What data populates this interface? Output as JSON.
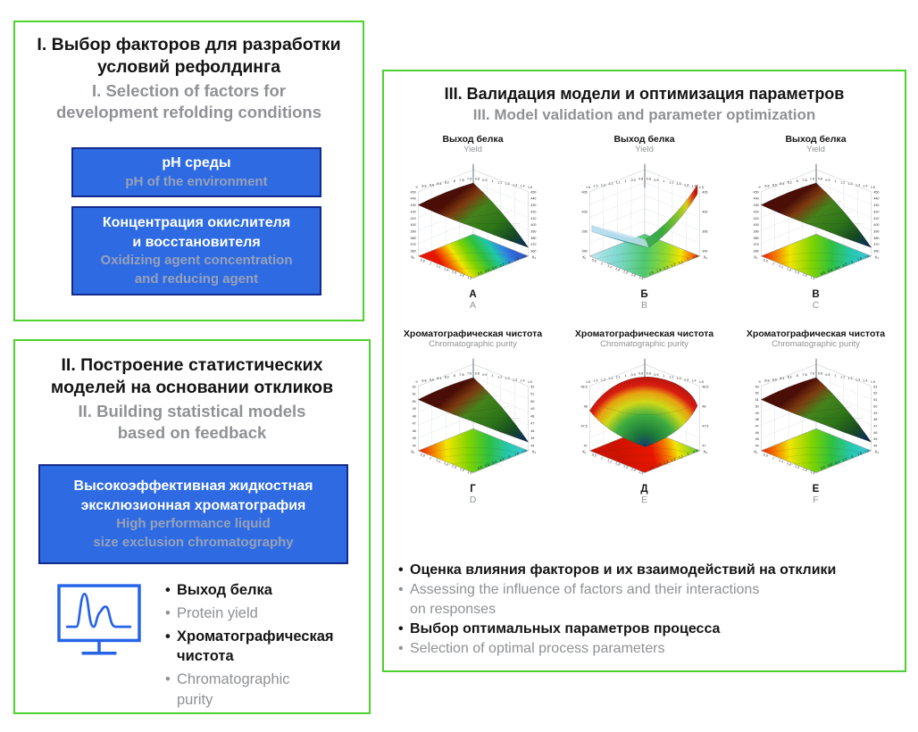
{
  "colors": {
    "panel_border_green": "#4cd22e",
    "box_blue": "#2e6be2",
    "box_border_navy": "#14298a",
    "gray_text": "#8e9193",
    "icon_blue": "#2563e8"
  },
  "panel1": {
    "title_ru_lines": [
      "I. Выбор факторов для разработки",
      "условий рефолдинга"
    ],
    "title_en_lines": [
      "I. Selection of factors for",
      "development refolding conditions"
    ],
    "boxes": [
      {
        "ru": "pH среды",
        "en": "pH of the environment"
      },
      {
        "ru_lines": [
          "Концентрация окислителя",
          "и восстановителя"
        ],
        "en_lines": [
          "Oxidizing agent concentration",
          "and reducing agent"
        ]
      }
    ]
  },
  "panel2": {
    "title_ru_lines": [
      "II. Построение статистических",
      "моделей на основании откликов"
    ],
    "title_en_lines": [
      "II. Building statistical models",
      "based on feedback"
    ],
    "box": {
      "ru_lines": [
        "Высокоэффективная жидкостная",
        "эксклюзионная хроматография"
      ],
      "en_lines": [
        "High performance liquid",
        "size exclusion chromatography"
      ]
    },
    "icon": "chromatogram-monitor-icon",
    "bullets": [
      {
        "lang": "ru",
        "text": "Выход белка"
      },
      {
        "lang": "en",
        "text": "Protein yield"
      },
      {
        "lang": "ru",
        "lines": [
          "Хроматографическая",
          "чистота"
        ]
      },
      {
        "lang": "en",
        "lines": [
          "Chromatographic",
          "purity"
        ]
      }
    ]
  },
  "panel3": {
    "title_ru": "III. Валидация модели и оптимизация параметров",
    "title_en": "III. Model validation and parameter optimization",
    "plots": [
      {
        "label_ru": "А",
        "label_en": "A",
        "title_ru": "Выход белка",
        "title_en": "Yield",
        "type": "3d-surface",
        "surface": "plane",
        "floor": "red-front",
        "z_range": [
          360,
          450
        ],
        "x1_range": [
          0.8,
          1.5
        ],
        "x2_range": [
          7.6,
          9
        ],
        "z_ticks": [
          "450",
          "440",
          "430",
          "420",
          "410",
          "400",
          "390",
          "380",
          "370",
          "360"
        ],
        "top_ticks": [
          "9",
          "8.8",
          "8.6",
          "8.4",
          "8.2",
          "8",
          "7.8",
          "7.6",
          "0.8",
          "0.9",
          "1",
          "1.1",
          "1.2",
          "1.3",
          "1.4",
          "1.5"
        ],
        "x1_ticks": [
          "0.9",
          "1",
          "1.1",
          "1.2",
          "1.3",
          "1.4",
          "1.5"
        ],
        "x2_ticks": [
          "8.8",
          "8.6",
          "8.4",
          "8.2",
          "8",
          "7.8",
          "7.6"
        ],
        "x1_label": "X₁",
        "x2_label": "X₂"
      },
      {
        "label_ru": "Б",
        "label_en": "B",
        "title_ru": "Выход белка",
        "title_en": "Yield",
        "type": "3d-surface",
        "surface": "saddle",
        "floor": "cyan-green-red",
        "z_range": [
          390,
          405
        ],
        "x1_range": [
          0.8,
          1.5
        ],
        "x2_range": [
          0.8,
          1.5
        ],
        "z_ticks": [
          "405",
          "400",
          "395",
          "390"
        ],
        "top_ticks": [
          "1.5",
          "1.4",
          "1.3",
          "1.2",
          "1.1",
          "1",
          "0.9",
          "0.8",
          "0.8",
          "0.9",
          "1",
          "1.1",
          "1.2",
          "1.3",
          "1.4",
          "1.5"
        ],
        "x1_ticks": [
          "0.9",
          "1",
          "1.1",
          "1.2",
          "1.3",
          "1.4",
          "1.5"
        ],
        "x2_ticks": [
          "1.5",
          "1.4",
          "1.3",
          "1.2",
          "1.1",
          "1",
          "0.9"
        ],
        "x1_label": "X₁",
        "x2_label": "X₂"
      },
      {
        "label_ru": "В",
        "label_en": "C",
        "title_ru": "Выход белка",
        "title_en": "Yield",
        "type": "3d-surface",
        "surface": "plane",
        "floor": "red-left",
        "z_range": [
          360,
          450
        ],
        "x1_range": [
          0.8,
          1.5
        ],
        "x2_range": [
          7.6,
          9
        ],
        "z_ticks": [
          "450",
          "440",
          "430",
          "420",
          "410",
          "400",
          "390",
          "380",
          "370",
          "360"
        ],
        "top_ticks": [
          "9",
          "8.8",
          "8.6",
          "8.4",
          "8.2",
          "8",
          "7.8",
          "7.6",
          "0.8",
          "0.9",
          "1",
          "1.1",
          "1.2",
          "1.3",
          "1.4",
          "1.5"
        ],
        "x1_ticks": [
          "0.9",
          "1",
          "1.1",
          "1.2",
          "1.3",
          "1.4",
          "1.5"
        ],
        "x2_ticks": [
          "8.8",
          "8.6",
          "8.4",
          "8.2",
          "8",
          "7.8",
          "7.6"
        ],
        "x1_label": "X₁",
        "x2_label": "X₂"
      },
      {
        "label_ru": "Г",
        "label_en": "D",
        "title_ru": "Хроматографическая чистота",
        "title_en": "Chromatographic purity",
        "type": "3d-surface",
        "surface": "plane",
        "floor": "red-left",
        "z_range": [
          44,
          52
        ],
        "x1_range": [
          0.8,
          1.5
        ],
        "x2_range": [
          7.6,
          9
        ],
        "z_ticks": [
          "52",
          "51",
          "50",
          "49",
          "48",
          "47",
          "46",
          "45",
          "44"
        ],
        "top_ticks": [
          "9",
          "8.8",
          "8.6",
          "8.4",
          "8.2",
          "8",
          "7.8",
          "7.6",
          "0.8",
          "0.9",
          "1",
          "1.1",
          "1.2",
          "1.3",
          "1.4",
          "1.5"
        ],
        "x1_ticks": [
          "0.9",
          "1",
          "1.1",
          "1.2",
          "1.3",
          "1.4",
          "1.5"
        ],
        "x2_ticks": [
          "8.8",
          "8.6",
          "8.4",
          "8.2",
          "8",
          "7.8",
          "7.6"
        ],
        "x1_label": "X₁",
        "x2_label": "X₂"
      },
      {
        "label_ru": "Д",
        "label_en": "E",
        "title_ru": "Хроматографическая чистота",
        "title_en": "Chromatographic purity",
        "type": "3d-surface",
        "surface": "dome",
        "floor": "red-blob",
        "z_range": [
          47,
          48.5
        ],
        "x1_range": [
          0.8,
          1.5
        ],
        "x2_range": [
          0.8,
          1.5
        ],
        "z_ticks": [
          "48.5",
          "48",
          "47.5",
          "47"
        ],
        "top_ticks": [
          "1.5",
          "1.4",
          "1.3",
          "1.2",
          "1.1",
          "1",
          "0.9",
          "0.8",
          "0.8",
          "0.9",
          "1",
          "1.1",
          "1.2",
          "1.3",
          "1.4",
          "1.5"
        ],
        "x1_ticks": [
          "0.9",
          "1",
          "1.1",
          "1.2",
          "1.3",
          "1.4",
          "1.5"
        ],
        "x2_ticks": [
          "1.5",
          "1.4",
          "1.3",
          "1.2",
          "1.1",
          "1",
          "0.9"
        ],
        "x1_label": "X₁",
        "x2_label": "X₂"
      },
      {
        "label_ru": "Е",
        "label_en": "F",
        "title_ru": "Хроматографическая чистота",
        "title_en": "Chromatographic purity",
        "type": "3d-surface",
        "surface": "plane",
        "floor": "red-left",
        "z_range": [
          44,
          53
        ],
        "x1_range": [
          0.8,
          1.5
        ],
        "x2_range": [
          7.6,
          9
        ],
        "z_ticks": [
          "53",
          "52",
          "51",
          "50",
          "49",
          "48",
          "47",
          "46",
          "45",
          "44"
        ],
        "top_ticks": [
          "9",
          "8.8",
          "8.6",
          "8.4",
          "8.2",
          "8",
          "7.8",
          "7.6",
          "0.8",
          "0.9",
          "1",
          "1.1",
          "1.2",
          "1.3",
          "1.4",
          "1.5"
        ],
        "x1_ticks": [
          "0.9",
          "1",
          "1.1",
          "1.2",
          "1.3",
          "1.4",
          "1.5"
        ],
        "x2_ticks": [
          "8.8",
          "8.6",
          "8.4",
          "8.2",
          "8",
          "7.8",
          "7.6"
        ],
        "x1_label": "X₁",
        "x2_label": "X₂"
      }
    ],
    "bullets": [
      {
        "ru": "Оценка влияния факторов и их взаимодействий на отклики",
        "en_lines": [
          "Assessing the influence of factors and their interactions",
          "on responses"
        ]
      },
      {
        "ru": "Выбор оптимальных параметров процесса",
        "en": "Selection of optimal process parameters"
      }
    ]
  }
}
